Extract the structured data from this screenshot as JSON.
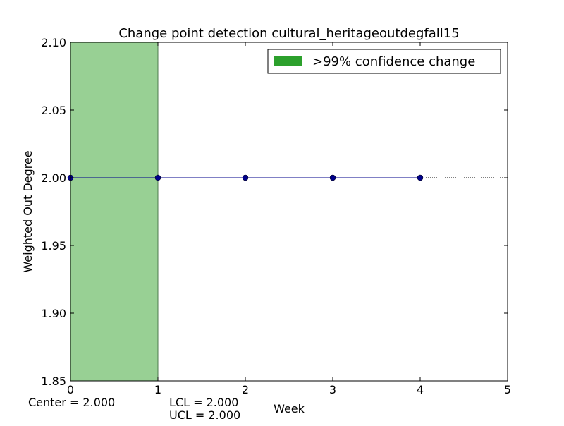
{
  "chart_data": {
    "type": "line",
    "title": "Change point detection cultural_heritageoutdegfall15",
    "xlabel": "Week",
    "ylabel": "Weighted Out Degree",
    "xlim": [
      0,
      5
    ],
    "ylim": [
      1.85,
      2.1
    ],
    "xticks": [
      "0",
      "1",
      "2",
      "3",
      "4",
      "5"
    ],
    "xtick_values": [
      0,
      1,
      2,
      3,
      4,
      5
    ],
    "yticks": [
      "1.85",
      "1.90",
      "1.95",
      "2.00",
      "2.05",
      "2.10"
    ],
    "ytick_values": [
      1.85,
      1.9,
      1.95,
      2.0,
      2.05,
      2.1
    ],
    "grid": false,
    "legend_position": "top-right",
    "series": [
      {
        "x": [
          0,
          1,
          2,
          3,
          4
        ],
        "y": [
          2.0,
          2.0,
          2.0,
          2.0,
          2.0
        ],
        "color": "#00008b",
        "marker": "circle"
      }
    ],
    "reference_lines": [
      {
        "y": 2.0,
        "style": "dotted",
        "color": "#000000"
      }
    ],
    "shaded_regions": [
      {
        "x_start": 0,
        "x_end": 1,
        "label": ">99% confidence change",
        "color": "#2ca02c",
        "fill": "#98d094"
      }
    ],
    "annotations": {
      "center": "Center = 2.000",
      "lcl": "LCL = 2.000",
      "ucl": "UCL = 2.000"
    }
  }
}
